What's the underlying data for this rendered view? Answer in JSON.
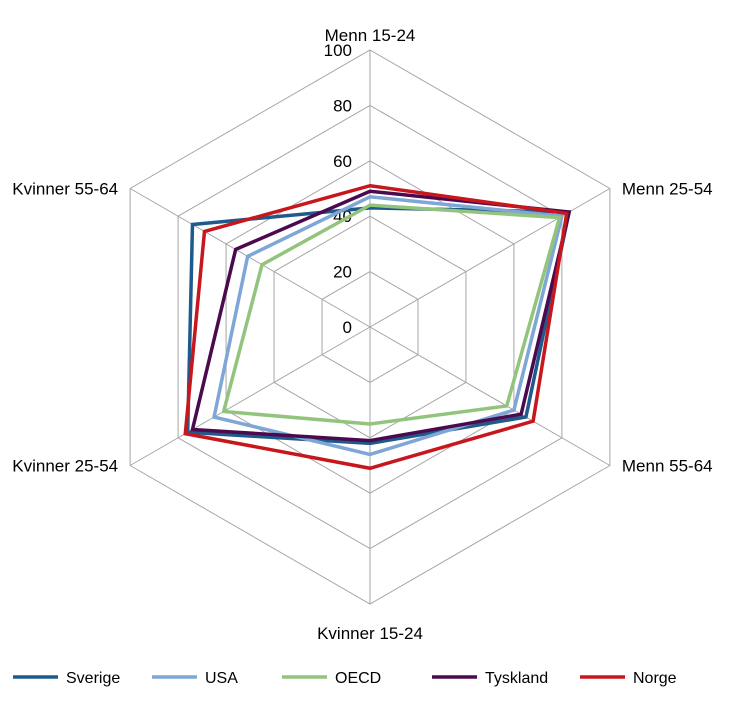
{
  "chart_data": {
    "type": "radar",
    "title": "",
    "axes": [
      "Menn 15-24",
      "Menn 25-54",
      "Menn 55-64",
      "Kvinner 15-24",
      "Kvinner 25-54",
      "Kvinner 55-64"
    ],
    "rlim": [
      0,
      100
    ],
    "ticks": [
      "0",
      "20",
      "40",
      "60",
      "80",
      "100"
    ],
    "grid": true,
    "legend_position": "bottom",
    "series": [
      {
        "name": "Sverige",
        "color": "#1f5a8c",
        "values": [
          43,
          83,
          65,
          42,
          76,
          74
        ]
      },
      {
        "name": "USA",
        "color": "#7ea6d6",
        "values": [
          47,
          80,
          60,
          46,
          65,
          51
        ]
      },
      {
        "name": "OECD",
        "color": "#93c47d",
        "values": [
          44,
          79,
          57,
          35,
          61,
          45
        ]
      },
      {
        "name": "Tyskland",
        "color": "#4b0a4e",
        "values": [
          49,
          83,
          63,
          41,
          74,
          56
        ]
      },
      {
        "name": "Norge",
        "color": "#c8161d",
        "values": [
          51,
          82,
          68,
          51,
          77,
          69
        ]
      }
    ]
  }
}
